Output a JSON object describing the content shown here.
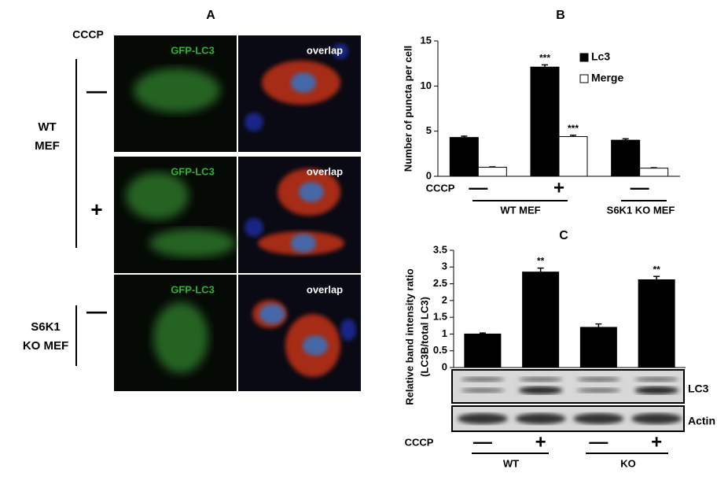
{
  "panel_a": {
    "label": "A",
    "treatment": "CCCP",
    "signs": [
      "—",
      "+",
      "—"
    ],
    "groups": [
      {
        "lines": [
          "WT",
          "MEF"
        ]
      },
      {
        "lines": [
          "S6K1",
          "KO MEF"
        ]
      }
    ],
    "images": [
      [
        "GFP-LC3",
        "overlap"
      ],
      [
        "GFP-LC3",
        "overlap"
      ],
      [
        "GFP-LC3",
        "overlap"
      ]
    ]
  },
  "chart_data": [
    {
      "type": "bar",
      "title": "B",
      "y_label": [
        "Number of puncta per cell"
      ],
      "x_label": "CCCP",
      "categories": [
        "—",
        "+",
        "—"
      ],
      "groups": [
        "WT MEF",
        "S6K1 KO MEF"
      ],
      "series": [
        {
          "name": "Lc3",
          "color": "#000000",
          "values": [
            4.3,
            12.1,
            4.0
          ],
          "errors": [
            0.15,
            0.25,
            0.15
          ],
          "annotations": [
            null,
            "***",
            null
          ]
        },
        {
          "name": "Merge",
          "color": "#ffffff",
          "values": [
            1.0,
            4.4,
            0.9
          ],
          "errors": [
            0.05,
            0.15,
            0.05
          ],
          "annotations": [
            null,
            "***",
            null
          ]
        }
      ],
      "ylim": [
        0,
        15
      ],
      "yticks": [
        0,
        5,
        10,
        15
      ],
      "legend": "upper right"
    },
    {
      "type": "bar",
      "title": "C",
      "y_label": [
        "Relative band intensity ratio",
        "(LC3B/total LC3)"
      ],
      "x_label": "CCCP",
      "categories": [
        "—",
        "+",
        "—",
        "+"
      ],
      "groups": [
        "WT",
        "KO"
      ],
      "series": [
        {
          "color": "#000000",
          "values": [
            1.0,
            2.85,
            1.2,
            2.62
          ],
          "errors": [
            0.03,
            0.12,
            0.1,
            0.1
          ],
          "annotations": [
            null,
            "**",
            null,
            "**"
          ]
        }
      ],
      "blot_labels": [
        "LC3",
        "Actin"
      ],
      "ylim": [
        0,
        3.5
      ],
      "yticks": [
        0,
        0.5,
        1,
        1.5,
        2,
        2.5,
        3,
        3.5
      ]
    }
  ]
}
